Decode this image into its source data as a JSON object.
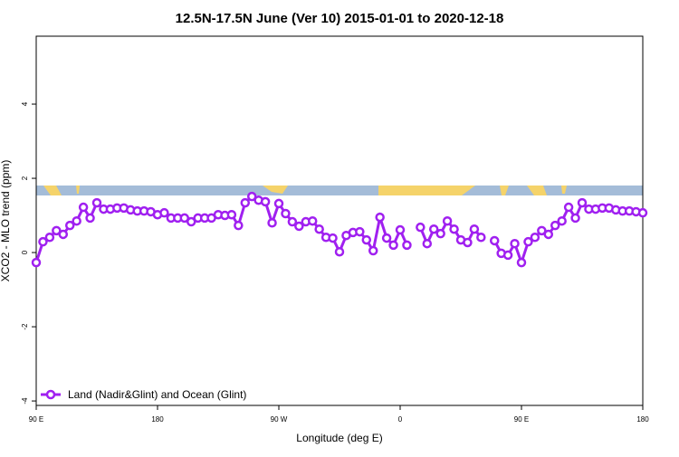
{
  "chart_data": {
    "type": "line",
    "title": "12.5N-17.5N June (Ver 10)   2015-01-01 to 2020-12-18",
    "x_label": "Longitude (deg E)",
    "y_label": "XCO2 - MLO trend (ppm)",
    "xlim": [
      90,
      540
    ],
    "ylim": [
      -4.12,
      5.83
    ],
    "xticks": [
      {
        "value": 90,
        "label": "90 E"
      },
      180,
      {
        "value": 270,
        "label": "90 W"
      },
      {
        "value": 360,
        "label": "0"
      },
      {
        "value": 450,
        "label": "90 E"
      },
      {
        "value": 540,
        "label": "180"
      }
    ],
    "yticks": [
      -4,
      -2,
      0,
      2,
      4
    ],
    "legend": "bottom-left",
    "x": [
      90,
      95,
      100,
      105,
      110,
      115,
      120,
      125,
      130,
      135,
      140,
      145,
      150,
      155,
      160,
      165,
      170,
      175,
      180,
      185,
      190,
      195,
      200,
      205,
      210,
      215,
      220,
      225,
      230,
      235,
      240,
      245,
      250,
      255,
      260,
      265,
      270,
      275,
      280,
      285,
      290,
      295,
      300,
      305,
      310,
      315,
      320,
      325,
      330,
      335,
      340,
      345,
      350,
      355,
      360,
      365,
      370,
      375,
      380,
      385,
      390,
      395,
      400,
      405,
      410,
      415,
      420,
      425,
      430,
      435,
      440,
      445,
      450,
      455,
      460,
      465,
      470,
      475,
      480,
      485,
      490,
      495,
      500,
      505,
      510,
      515,
      520,
      525,
      530,
      535,
      540
    ],
    "series": [
      {
        "name": "Land (Nadir&Glint) and Ocean (Glint)",
        "color": "#a020f0",
        "values": [
          -0.27,
          0.29,
          0.41,
          0.59,
          0.49,
          0.73,
          0.85,
          1.22,
          0.93,
          1.34,
          1.17,
          1.17,
          1.2,
          1.2,
          1.15,
          1.12,
          1.12,
          1.1,
          1.02,
          1.07,
          0.93,
          0.93,
          0.93,
          0.83,
          0.93,
          0.93,
          0.93,
          1.02,
          1.0,
          1.02,
          0.73,
          1.34,
          1.51,
          1.41,
          1.37,
          0.8,
          1.32,
          1.05,
          0.83,
          0.71,
          0.83,
          0.85,
          0.63,
          0.41,
          0.39,
          0.02,
          0.46,
          0.54,
          0.56,
          0.34,
          0.05,
          0.95,
          0.39,
          0.2,
          0.61,
          0.2,
          null,
          0.68,
          0.24,
          0.63,
          0.51,
          0.85,
          0.63,
          0.34,
          0.27,
          0.63,
          0.41,
          null,
          0.32,
          -0.02,
          -0.07,
          0.24,
          -0.27,
          0.29,
          0.41,
          0.59,
          0.49,
          0.73,
          0.85,
          1.22,
          0.93,
          1.34,
          1.17,
          1.17,
          1.2,
          1.2,
          1.15,
          1.12,
          1.12,
          1.1,
          1.07
        ]
      }
    ]
  }
}
